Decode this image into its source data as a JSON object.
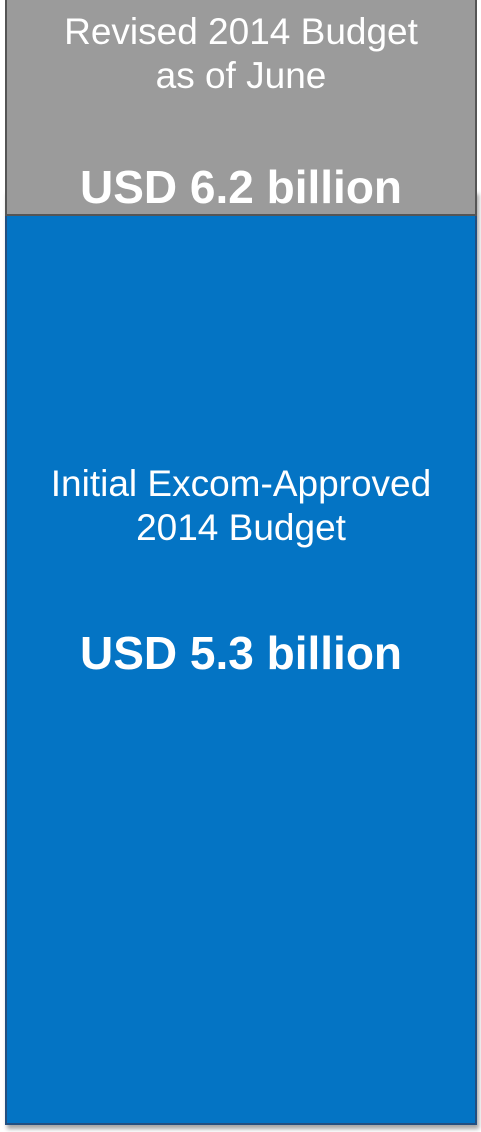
{
  "chart_data": {
    "type": "bar",
    "categories": [
      "Initial Excom-Approved 2014 Budget",
      "Revised 2014 Budget as of June"
    ],
    "values": [
      5.3,
      6.2
    ],
    "unit": "USD billion",
    "segments": [
      {
        "label_lines": [
          "Revised 2014 Budget",
          "as of June"
        ],
        "value_label": "USD 6.2 billion",
        "value": 6.2,
        "color": "#9b9b9b"
      },
      {
        "label_lines": [
          "Initial Excom-Approved",
          "2014 Budget"
        ],
        "value_label": "USD 5.3 billion",
        "value": 5.3,
        "color": "#0474c4"
      }
    ]
  }
}
